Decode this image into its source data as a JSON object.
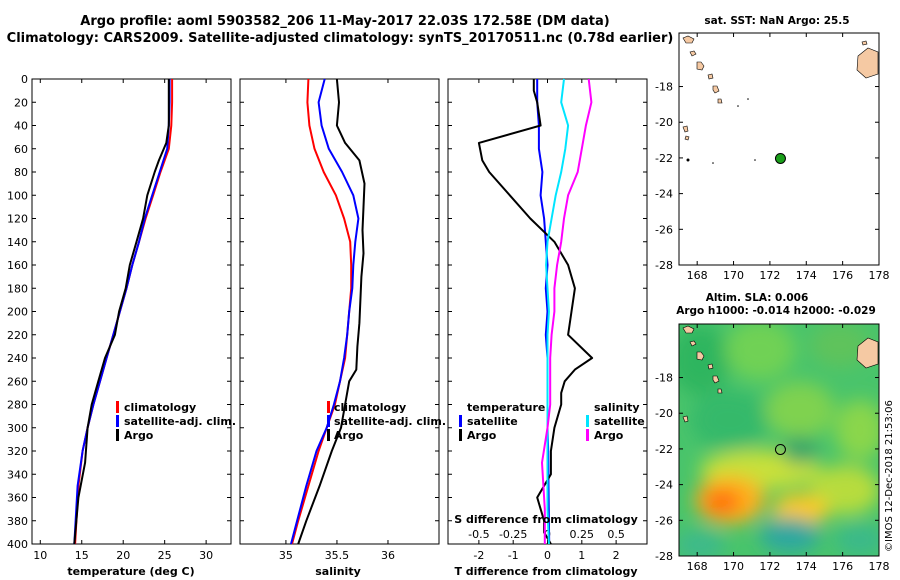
{
  "header": {
    "line1": "Argo profile: aoml 5903582_206 11-May-2017 22.03S 172.58E (DM data)",
    "line2": "Climatology: CARS2009. Satellite-adjusted climatology: synTS_20170511.nc (0.78d earlier)"
  },
  "timestamp": "©IMOS 12-Dec-2018 21:53:06",
  "colors": {
    "climatology": "#ff0000",
    "satellite": "#0000ff",
    "argo": "#000000",
    "sat_salinity": "#00e5ff",
    "argo_salinity": "#ff00ff",
    "land": "#f5c9a3"
  },
  "chart_data": [
    {
      "type": "line",
      "title": "",
      "xlabel": "temperature (deg C)",
      "ylabel": "",
      "xlim": [
        9,
        33
      ],
      "ylim": [
        400,
        0
      ],
      "xticks": [
        10,
        15,
        20,
        25,
        30
      ],
      "yticks": [
        0,
        20,
        40,
        60,
        80,
        100,
        120,
        140,
        160,
        180,
        200,
        220,
        240,
        260,
        280,
        300,
        320,
        340,
        360,
        380,
        400
      ],
      "legend": [
        "climatology",
        "satellite-adj. clim.",
        "Argo"
      ],
      "legend_position": "lower-right",
      "series": [
        {
          "name": "climatology",
          "color": "#ff0000",
          "x": [
            25.9,
            25.9,
            25.8,
            25.5,
            24.5,
            23.6,
            22.7,
            21.9,
            21.1,
            20.4,
            19.6,
            18.8,
            18.0,
            17.2,
            16.4,
            15.7,
            15.1,
            14.6,
            14.2
          ],
          "y": [
            0,
            20,
            40,
            60,
            80,
            100,
            120,
            140,
            160,
            180,
            200,
            220,
            240,
            260,
            280,
            300,
            320,
            350,
            400
          ]
        },
        {
          "name": "satellite-adj. clim.",
          "color": "#0000ff",
          "x": [
            25.6,
            25.6,
            25.5,
            25.3,
            24.4,
            23.5,
            22.6,
            21.9,
            21.1,
            20.4,
            19.6,
            18.8,
            18.0,
            17.2,
            16.4,
            15.7,
            15.1,
            14.5,
            14.1
          ],
          "y": [
            0,
            20,
            40,
            60,
            80,
            100,
            120,
            140,
            160,
            180,
            200,
            220,
            240,
            260,
            280,
            300,
            320,
            350,
            400
          ]
        },
        {
          "name": "Argo",
          "color": "#000000",
          "x": [
            25.5,
            25.5,
            25.5,
            25.2,
            24.3,
            23.8,
            22.9,
            22.4,
            21.6,
            20.8,
            20.3,
            19.5,
            19.0,
            17.8,
            17.0,
            16.2,
            15.7,
            15.4,
            14.6,
            14.1
          ],
          "y": [
            0,
            20,
            40,
            55,
            70,
            80,
            100,
            120,
            140,
            160,
            180,
            200,
            220,
            240,
            260,
            280,
            300,
            330,
            360,
            400
          ]
        }
      ]
    },
    {
      "type": "line",
      "title": "",
      "xlabel": "salinity",
      "ylabel": "",
      "xlim": [
        34.55,
        36.5
      ],
      "ylim": [
        400,
        0
      ],
      "xticks": [
        35,
        35.5,
        36
      ],
      "yticks": [
        0,
        20,
        40,
        60,
        80,
        100,
        120,
        140,
        160,
        180,
        200,
        220,
        240,
        260,
        280,
        300,
        320,
        340,
        360,
        380,
        400
      ],
      "legend": [
        "climatology",
        "satellite-adj. clim.",
        "Argo"
      ],
      "legend_position": "lower-right",
      "series": [
        {
          "name": "climatology",
          "color": "#ff0000",
          "x": [
            35.22,
            35.21,
            35.23,
            35.28,
            35.37,
            35.49,
            35.57,
            35.63,
            35.64,
            35.64,
            35.62,
            35.6,
            35.58,
            35.53,
            35.48,
            35.4,
            35.32,
            35.22,
            35.12,
            35.06
          ],
          "y": [
            0,
            20,
            40,
            60,
            80,
            100,
            120,
            140,
            160,
            180,
            200,
            220,
            240,
            260,
            280,
            300,
            320,
            350,
            380,
            400
          ]
        },
        {
          "name": "satellite-adj. clim.",
          "color": "#0000ff",
          "x": [
            35.38,
            35.32,
            35.35,
            35.42,
            35.55,
            35.66,
            35.71,
            35.68,
            35.66,
            35.65,
            35.62,
            35.6,
            35.57,
            35.53,
            35.47,
            35.4,
            35.3,
            35.2,
            35.11,
            35.05
          ],
          "y": [
            0,
            20,
            40,
            60,
            80,
            100,
            120,
            140,
            160,
            180,
            200,
            220,
            240,
            260,
            280,
            300,
            320,
            350,
            380,
            400
          ]
        },
        {
          "name": "Argo",
          "color": "#000000",
          "x": [
            35.5,
            35.52,
            35.5,
            35.58,
            35.72,
            35.77,
            35.76,
            35.75,
            35.76,
            35.74,
            35.73,
            35.72,
            35.7,
            35.69,
            35.62,
            35.58,
            35.54,
            35.45,
            35.33,
            35.2,
            35.12
          ],
          "y": [
            0,
            20,
            40,
            55,
            70,
            90,
            110,
            130,
            150,
            170,
            190,
            210,
            230,
            250,
            260,
            280,
            300,
            320,
            350,
            380,
            400
          ]
        }
      ]
    },
    {
      "type": "line",
      "title": "",
      "xlabel": "T difference from climatology",
      "xlabel2": "S difference from climatology",
      "ylabel": "",
      "xlim": [
        -2.9,
        2.9
      ],
      "x2lim": [
        -0.725,
        0.725
      ],
      "ylim": [
        400,
        0
      ],
      "xticks": [
        -2,
        -1,
        0,
        1,
        2
      ],
      "x2ticks": [
        -0.5,
        -0.25,
        0,
        0.25,
        0.5
      ],
      "x2ticklabels": [
        "-0.5",
        "-0.25",
        "0",
        "0.25",
        "0.5"
      ],
      "yticks": [
        0,
        20,
        40,
        60,
        80,
        100,
        120,
        140,
        160,
        180,
        200,
        220,
        240,
        260,
        280,
        300,
        320,
        340,
        360,
        380,
        400
      ],
      "legend_temperature": {
        "heading": "temperature",
        "items": [
          "satellite",
          "Argo"
        ]
      },
      "legend_salinity": {
        "heading": "salinity",
        "items": [
          "satellite",
          "Argo"
        ]
      },
      "legend_position": "lower",
      "series": [
        {
          "name": "T satellite",
          "axis": "T",
          "color": "#0000ff",
          "x": [
            -0.3,
            -0.3,
            -0.25,
            -0.25,
            -0.15,
            -0.2,
            -0.1,
            -0.05,
            0,
            -0.05,
            0,
            -0.05,
            0,
            0,
            0,
            0,
            0.02,
            0.03,
            0.05
          ],
          "y": [
            0,
            20,
            40,
            60,
            80,
            100,
            120,
            140,
            160,
            180,
            200,
            220,
            240,
            260,
            280,
            300,
            320,
            350,
            400
          ]
        },
        {
          "name": "T Argo",
          "axis": "T",
          "color": "#000000",
          "x": [
            -0.4,
            -0.4,
            -0.3,
            -0.2,
            -2.0,
            -1.9,
            -1.7,
            -1.1,
            -0.5,
            0.2,
            0.6,
            0.8,
            0.7,
            0.6,
            1.3,
            0.8,
            0.5,
            0.4,
            0.4,
            0.2,
            0.1,
            0.1,
            -0.3,
            -0.1,
            -0.1,
            0.1
          ],
          "y": [
            0,
            10,
            20,
            40,
            55,
            70,
            80,
            100,
            120,
            140,
            160,
            180,
            200,
            220,
            240,
            250,
            260,
            270,
            280,
            300,
            320,
            340,
            360,
            380,
            390,
            400
          ]
        },
        {
          "name": "S satellite",
          "axis": "S",
          "color": "#00e5ff",
          "x": [
            0.12,
            0.1,
            0.15,
            0.13,
            0.1,
            0.06,
            0.03,
            0.0,
            -0.01,
            0.0,
            0.01,
            0.0,
            0.0,
            0.0,
            0.0,
            0.0,
            0.01
          ],
          "y": [
            0,
            20,
            40,
            60,
            80,
            100,
            120,
            140,
            160,
            180,
            200,
            220,
            250,
            300,
            340,
            370,
            400
          ]
        },
        {
          "name": "S Argo",
          "axis": "S",
          "color": "#ff00ff",
          "x": [
            0.3,
            0.32,
            0.28,
            0.25,
            0.22,
            0.15,
            0.12,
            0.1,
            0.07,
            0.05,
            0.05,
            0.03,
            0.02,
            0.02,
            0.02,
            0.0,
            -0.04,
            -0.02,
            -0.02
          ],
          "y": [
            0,
            20,
            40,
            60,
            80,
            100,
            120,
            140,
            160,
            180,
            200,
            220,
            240,
            260,
            280,
            300,
            330,
            370,
            400
          ]
        }
      ]
    }
  ],
  "map_sst": {
    "title": "sat. SST: NaN Argo: 25.5",
    "xticks": [
      168,
      170,
      172,
      174,
      176,
      178
    ],
    "yticks": [
      -18,
      -20,
      -22,
      -24,
      -26,
      -28
    ],
    "xlim": [
      167,
      178
    ],
    "ylim": [
      -28,
      -15
    ],
    "argo_position": {
      "lon": 172.58,
      "lat": -22.03,
      "marker_color": "#1a9e1a"
    }
  },
  "map_sla": {
    "title1": "Altim. SLA: 0.006",
    "title2": "Argo h1000: -0.014 h2000: -0.029",
    "xticks": [
      168,
      170,
      172,
      174,
      176,
      178
    ],
    "yticks": [
      -18,
      -20,
      -22,
      -24,
      -26,
      -28
    ],
    "xlim": [
      167,
      178
    ],
    "ylim": [
      -28,
      -15
    ],
    "argo_position": {
      "lon": 172.58,
      "lat": -22.03
    }
  }
}
